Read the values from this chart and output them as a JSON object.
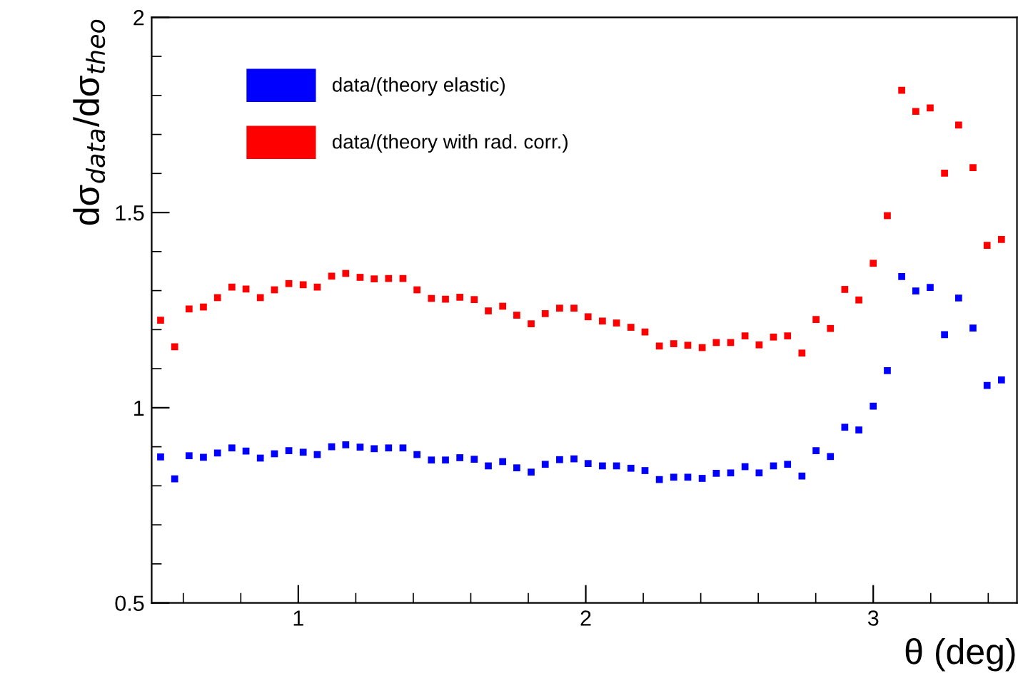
{
  "chart_data": {
    "type": "scatter",
    "xlabel": "θ (deg)",
    "ylabel": "dσ$_{data}$/dσ$_{theo}$",
    "x": [
      0.521,
      0.57,
      0.62,
      0.67,
      0.719,
      0.769,
      0.818,
      0.868,
      0.917,
      0.967,
      1.017,
      1.066,
      1.116,
      1.165,
      1.215,
      1.264,
      1.314,
      1.364,
      1.413,
      1.463,
      1.512,
      1.562,
      1.612,
      1.661,
      1.711,
      1.76,
      1.81,
      1.859,
      1.909,
      1.959,
      2.008,
      2.058,
      2.107,
      2.157,
      2.206,
      2.256,
      2.306,
      2.355,
      2.405,
      2.454,
      2.504,
      2.554,
      2.603,
      2.653,
      2.702,
      2.752,
      2.801,
      2.851,
      2.901,
      2.95,
      3.0,
      3.049,
      3.099,
      3.148,
      3.198,
      3.248,
      3.297,
      3.347,
      3.396,
      3.446
    ],
    "series": [
      {
        "name": "data/(theory elastic)",
        "color": "#0000ff",
        "values": [
          0.874,
          0.818,
          0.877,
          0.873,
          0.884,
          0.897,
          0.889,
          0.871,
          0.882,
          0.89,
          0.886,
          0.88,
          0.9,
          0.905,
          0.899,
          0.895,
          0.897,
          0.897,
          0.88,
          0.866,
          0.866,
          0.872,
          0.868,
          0.851,
          0.862,
          0.846,
          0.835,
          0.855,
          0.867,
          0.869,
          0.857,
          0.851,
          0.851,
          0.845,
          0.839,
          0.816,
          0.822,
          0.822,
          0.819,
          0.832,
          0.833,
          0.849,
          0.833,
          0.851,
          0.855,
          0.825,
          0.89,
          0.875,
          0.95,
          0.943,
          1.004,
          1.095,
          1.336,
          1.299,
          1.308,
          1.187,
          1.281,
          1.204,
          1.057,
          1.071
        ]
      },
      {
        "name": "data/(theory with rad. corr.)",
        "color": "#ff0000",
        "values": [
          1.224,
          1.156,
          1.253,
          1.258,
          1.282,
          1.309,
          1.304,
          1.282,
          1.302,
          1.318,
          1.315,
          1.309,
          1.337,
          1.344,
          1.334,
          1.33,
          1.331,
          1.331,
          1.302,
          1.28,
          1.278,
          1.283,
          1.277,
          1.248,
          1.26,
          1.237,
          1.215,
          1.241,
          1.255,
          1.255,
          1.233,
          1.222,
          1.217,
          1.206,
          1.194,
          1.158,
          1.164,
          1.16,
          1.154,
          1.167,
          1.167,
          1.184,
          1.161,
          1.181,
          1.184,
          1.14,
          1.226,
          1.203,
          1.303,
          1.276,
          1.37,
          1.492,
          1.813,
          1.759,
          1.768,
          1.601,
          1.724,
          1.615,
          1.416,
          1.431
        ]
      }
    ],
    "xlim": [
      0.49,
      3.5
    ],
    "ylim": [
      0.5,
      2
    ],
    "xticks": [
      1,
      2,
      3
    ],
    "yticks": [
      0.5,
      1,
      1.5,
      2
    ],
    "marker": "square",
    "grid": false,
    "legend": "top left"
  }
}
